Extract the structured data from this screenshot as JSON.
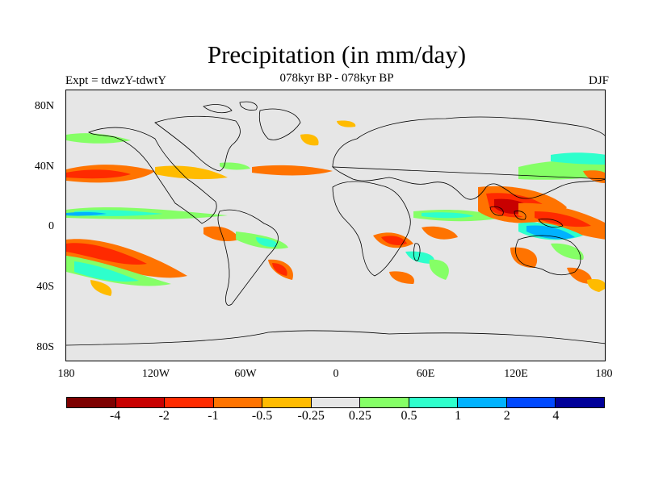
{
  "title": "Precipitation (in mm/day)",
  "subtitle_left": "Expt = tdwzY-tdwtY",
  "subtitle_center": "078kyr BP - 078kyr BP",
  "subtitle_right": "DJF",
  "y_axis_labels": [
    "80N",
    "40N",
    "0",
    "40S",
    "80S"
  ],
  "x_axis_labels": [
    "180",
    "120W",
    "60W",
    "0",
    "60E",
    "120E",
    "180"
  ],
  "colorbar": {
    "colors": [
      "#7d0000",
      "#c80000",
      "#ff2a00",
      "#ff7300",
      "#ffbb00",
      "#e6e6e6",
      "#85ff66",
      "#2effcc",
      "#00b2ff",
      "#0048ff",
      "#000099"
    ],
    "labels": [
      "-4",
      "-2",
      "-1",
      "-0.5",
      "-0.25",
      "0.25",
      "0.5",
      "1",
      "2",
      "4"
    ]
  },
  "map": {
    "background": "#e6e6e6",
    "coastline_color": "#000000"
  }
}
